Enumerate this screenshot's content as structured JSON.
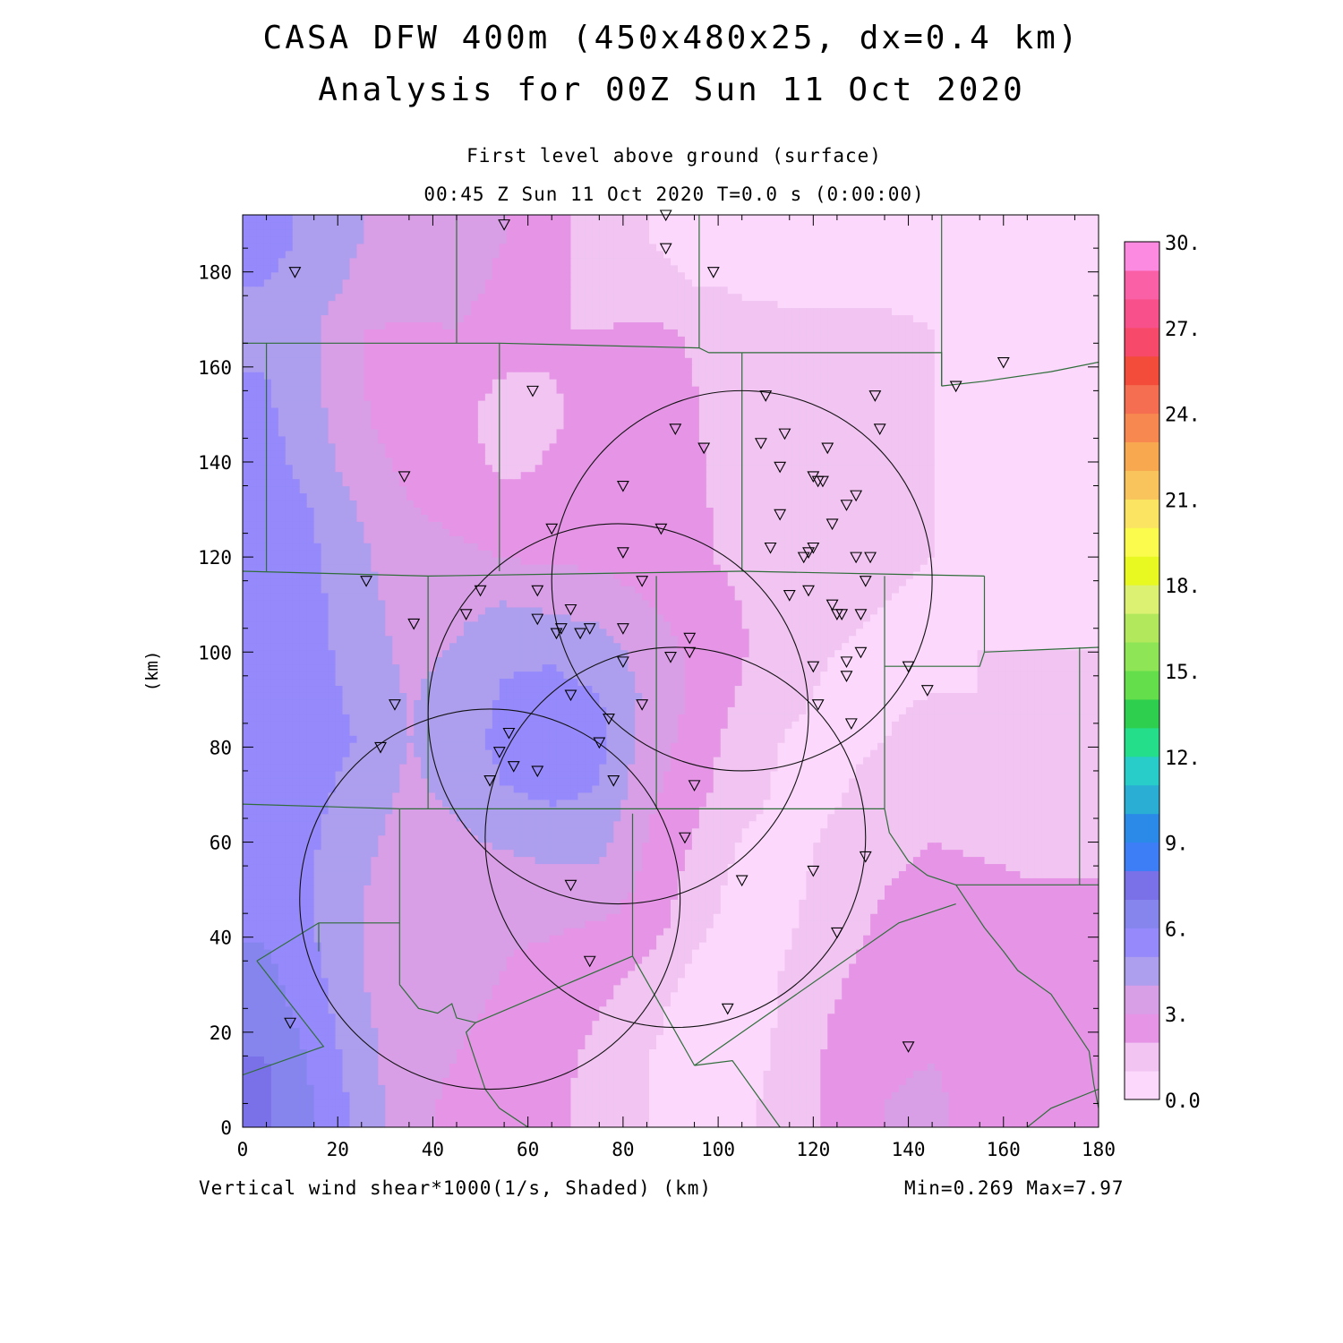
{
  "header": {
    "title_line1": "CASA DFW 400m (450x480x25, dx=0.4 km)",
    "title_line2": "Analysis for 00Z Sun 11 Oct 2020",
    "level": "First level above ground (surface)",
    "time": "00:45 Z Sun 11 Oct 2020   T=0.0 s (0:00:00)"
  },
  "footer": {
    "field": "Vertical wind shear*1000(1/s, Shaded)  (km)",
    "range": "Min=0.269 Max=7.97"
  },
  "chart_data": {
    "type": "heatmap",
    "xlabel": "",
    "ylabel": "(km)",
    "xlim": [
      0,
      180
    ],
    "ylim": [
      0,
      192
    ],
    "xticks": [
      0,
      20,
      40,
      60,
      80,
      100,
      120,
      140,
      160,
      180
    ],
    "yticks": [
      0,
      20,
      40,
      60,
      80,
      100,
      120,
      140,
      160,
      180
    ],
    "min": 0.269,
    "max": 7.97,
    "colorbar": {
      "labels": [
        "0.0",
        "3.",
        "6.",
        "9.",
        "12.",
        "15.",
        "18.",
        "21.",
        "24.",
        "27.",
        "30."
      ],
      "levels": [
        0,
        1,
        2,
        3,
        4,
        5,
        6,
        7,
        8,
        9,
        10,
        11,
        12,
        13,
        14,
        15,
        16,
        17,
        18,
        19,
        20,
        21,
        22,
        23,
        24,
        25,
        26,
        27,
        28,
        29,
        30
      ],
      "colors": [
        "#fcd9fc",
        "#f1c4f1",
        "#e695e6",
        "#d89ee6",
        "#ad9fee",
        "#9589fb",
        "#8685ee",
        "#7a70e8",
        "#3d7ef7",
        "#2b8ae8",
        "#2aaed4",
        "#28ccc8",
        "#24de8a",
        "#2ecf4e",
        "#64df4b",
        "#8ee656",
        "#b2e85c",
        "#dcf072",
        "#e7f920",
        "#fbfb4e",
        "#fbe462",
        "#f8c45b",
        "#f8a950",
        "#f68850",
        "#f56e52",
        "#f44c3a",
        "#f74a6a",
        "#f8508a",
        "#fa60a6",
        "#fc8ae0"
      ]
    },
    "shading_field": {
      "nx": 18,
      "ny": 20,
      "x_centers": [
        5,
        15,
        25,
        35,
        45,
        55,
        65,
        75,
        85,
        95,
        105,
        115,
        125,
        135,
        145,
        155,
        165,
        175
      ],
      "y_centers": [
        4.8,
        14.4,
        24,
        33.6,
        43.2,
        52.8,
        62.4,
        72,
        81.6,
        91.2,
        100.8,
        110.4,
        120,
        129.6,
        139.2,
        148.8,
        158.4,
        168,
        177.6,
        187.2
      ],
      "values": [
        [
          7.2,
          6.0,
          4.6,
          3.3,
          2.8,
          2.6,
          2.3,
          1.5,
          1.0,
          0.8,
          0.8,
          1.4,
          2.4,
          3.0,
          3.1,
          2.8,
          2.7,
          2.7
        ],
        [
          7.0,
          5.8,
          4.4,
          3.3,
          3.0,
          2.7,
          2.4,
          1.7,
          1.0,
          0.6,
          0.6,
          1.3,
          2.3,
          2.9,
          3.0,
          2.8,
          2.7,
          2.7
        ],
        [
          6.6,
          5.5,
          4.2,
          3.3,
          3.1,
          2.9,
          2.6,
          2.0,
          1.3,
          0.5,
          0.5,
          1.2,
          2.1,
          2.7,
          2.9,
          2.8,
          2.6,
          2.6
        ],
        [
          6.2,
          5.2,
          4.0,
          3.3,
          3.2,
          3.0,
          2.8,
          2.4,
          1.8,
          0.8,
          0.5,
          1.1,
          1.8,
          2.5,
          2.8,
          2.7,
          2.5,
          2.4
        ],
        [
          5.8,
          5.0,
          4.0,
          3.4,
          3.3,
          3.1,
          3.1,
          3.0,
          2.6,
          1.3,
          0.6,
          0.9,
          1.5,
          2.2,
          2.6,
          2.5,
          2.3,
          2.2
        ],
        [
          5.5,
          5.0,
          4.1,
          3.5,
          3.6,
          3.6,
          3.8,
          3.8,
          2.8,
          1.6,
          0.7,
          0.8,
          1.3,
          1.9,
          2.3,
          2.2,
          2.0,
          2.0
        ],
        [
          5.4,
          5.1,
          4.3,
          3.6,
          3.9,
          4.3,
          4.6,
          4.5,
          3.0,
          2.0,
          1.0,
          0.8,
          1.1,
          1.6,
          1.9,
          1.7,
          1.6,
          1.6
        ],
        [
          5.6,
          5.3,
          4.6,
          3.8,
          4.3,
          5.0,
          5.3,
          5.0,
          3.3,
          2.4,
          1.3,
          0.8,
          0.9,
          1.3,
          1.5,
          1.4,
          1.3,
          1.3
        ],
        [
          5.9,
          5.5,
          4.9,
          4.0,
          4.5,
          5.3,
          5.6,
          5.3,
          3.6,
          2.6,
          1.5,
          0.9,
          0.8,
          1.0,
          1.2,
          1.1,
          1.1,
          1.1
        ],
        [
          5.8,
          5.4,
          4.7,
          3.9,
          4.4,
          5.1,
          5.3,
          5.0,
          3.8,
          2.8,
          1.9,
          1.2,
          0.8,
          0.9,
          1.0,
          1.0,
          1.0,
          1.0
        ],
        [
          5.7,
          5.3,
          4.5,
          3.7,
          4.1,
          4.8,
          4.8,
          4.5,
          3.5,
          2.8,
          2.1,
          1.4,
          1.0,
          0.9,
          0.9,
          1.0,
          1.0,
          1.0
        ],
        [
          5.6,
          5.2,
          4.4,
          3.5,
          3.7,
          4.0,
          3.8,
          3.5,
          3.0,
          2.6,
          2.0,
          1.4,
          1.1,
          1.0,
          0.9,
          0.9,
          0.9,
          0.9
        ],
        [
          5.6,
          5.1,
          4.2,
          3.3,
          3.2,
          3.0,
          2.8,
          2.8,
          2.6,
          2.3,
          1.6,
          1.3,
          1.2,
          1.1,
          1.0,
          0.9,
          0.9,
          0.9
        ],
        [
          5.5,
          5.0,
          3.9,
          3.1,
          2.8,
          2.4,
          2.4,
          2.5,
          2.5,
          2.3,
          1.4,
          1.2,
          1.1,
          1.1,
          1.0,
          0.9,
          0.9,
          0.9
        ],
        [
          5.4,
          4.6,
          3.4,
          2.8,
          2.5,
          1.8,
          2.1,
          2.3,
          2.4,
          2.2,
          1.3,
          1.2,
          1.2,
          1.1,
          1.0,
          0.9,
          0.8,
          0.8
        ],
        [
          5.2,
          4.3,
          3.1,
          2.6,
          2.3,
          1.5,
          1.9,
          2.2,
          2.3,
          2.1,
          1.3,
          1.1,
          1.1,
          1.1,
          1.0,
          0.9,
          0.8,
          0.8
        ],
        [
          5.0,
          4.2,
          3.0,
          2.6,
          2.4,
          2.0,
          2.0,
          2.2,
          2.3,
          2.0,
          1.3,
          1.1,
          1.1,
          1.1,
          1.0,
          0.9,
          0.8,
          0.8
        ],
        [
          4.8,
          4.1,
          3.0,
          2.9,
          3.0,
          2.6,
          2.0,
          2.0,
          2.2,
          1.9,
          1.2,
          1.1,
          1.1,
          1.1,
          1.0,
          0.8,
          0.7,
          0.7
        ],
        [
          5.0,
          4.5,
          3.7,
          3.5,
          3.3,
          2.8,
          2.3,
          1.4,
          1.1,
          1.0,
          0.9,
          0.9,
          0.9,
          0.9,
          0.8,
          0.6,
          0.6,
          0.6
        ],
        [
          5.3,
          4.8,
          4.0,
          3.8,
          3.6,
          3.0,
          2.6,
          1.3,
          1.0,
          0.9,
          0.9,
          0.9,
          0.9,
          0.9,
          0.8,
          0.6,
          0.6,
          0.6
        ]
      ]
    },
    "radar_rings": [
      {
        "cx": 105,
        "cy": 115,
        "r": 40
      },
      {
        "cx": 79,
        "cy": 87,
        "r": 40
      },
      {
        "cx": 91,
        "cy": 61,
        "r": 40
      },
      {
        "cx": 52,
        "cy": 48,
        "r": 40
      }
    ],
    "stations": [
      [
        11,
        180
      ],
      [
        55,
        190
      ],
      [
        89,
        192
      ],
      [
        89,
        185
      ],
      [
        99,
        180
      ],
      [
        61,
        155
      ],
      [
        160,
        161
      ],
      [
        150,
        156
      ],
      [
        34,
        137
      ],
      [
        110,
        154
      ],
      [
        133,
        154
      ],
      [
        91,
        147
      ],
      [
        97,
        143
      ],
      [
        109,
        144
      ],
      [
        114,
        146
      ],
      [
        134,
        147
      ],
      [
        123,
        143
      ],
      [
        113,
        139
      ],
      [
        80,
        135
      ],
      [
        120,
        137
      ],
      [
        121,
        136
      ],
      [
        122,
        136
      ],
      [
        129,
        133
      ],
      [
        127,
        131
      ],
      [
        65,
        126
      ],
      [
        88,
        126
      ],
      [
        113,
        129
      ],
      [
        124,
        127
      ],
      [
        80,
        121
      ],
      [
        111,
        122
      ],
      [
        120,
        122
      ],
      [
        119,
        121
      ],
      [
        118,
        120
      ],
      [
        129,
        120
      ],
      [
        132,
        120
      ],
      [
        26,
        115
      ],
      [
        84,
        115
      ],
      [
        131,
        115
      ],
      [
        50,
        113
      ],
      [
        62,
        113
      ],
      [
        69,
        109
      ],
      [
        115,
        112
      ],
      [
        119,
        113
      ],
      [
        124,
        110
      ],
      [
        125,
        108
      ],
      [
        126,
        108
      ],
      [
        47,
        108
      ],
      [
        130,
        108
      ],
      [
        36,
        106
      ],
      [
        62,
        107
      ],
      [
        67,
        105
      ],
      [
        66,
        104
      ],
      [
        71,
        104
      ],
      [
        73,
        105
      ],
      [
        80,
        105
      ],
      [
        94,
        103
      ],
      [
        94,
        100
      ],
      [
        90,
        99
      ],
      [
        130,
        100
      ],
      [
        127,
        98
      ],
      [
        80,
        98
      ],
      [
        120,
        97
      ],
      [
        140,
        97
      ],
      [
        127,
        95
      ],
      [
        69,
        91
      ],
      [
        144,
        92
      ],
      [
        32,
        89
      ],
      [
        84,
        89
      ],
      [
        121,
        89
      ],
      [
        77,
        86
      ],
      [
        128,
        85
      ],
      [
        29,
        80
      ],
      [
        56,
        83
      ],
      [
        54,
        79
      ],
      [
        75,
        81
      ],
      [
        57,
        76
      ],
      [
        62,
        75
      ],
      [
        52,
        73
      ],
      [
        78,
        73
      ],
      [
        95,
        72
      ],
      [
        93,
        61
      ],
      [
        131,
        57
      ],
      [
        120,
        54
      ],
      [
        105,
        52
      ],
      [
        69,
        51
      ],
      [
        125,
        41
      ],
      [
        73,
        35
      ],
      [
        102,
        25
      ],
      [
        10,
        22
      ],
      [
        140,
        17
      ]
    ],
    "boundaries": [
      [
        [
          45,
          192
        ],
        [
          45,
          165
        ]
      ],
      [
        [
          0,
          165
        ],
        [
          54,
          165
        ]
      ],
      [
        [
          54,
          165
        ],
        [
          54,
          117
        ]
      ],
      [
        [
          54,
          165
        ],
        [
          96,
          164
        ],
        [
          98,
          163
        ]
      ],
      [
        [
          96,
          192
        ],
        [
          96,
          164
        ]
      ],
      [
        [
          105,
          163
        ],
        [
          105,
          117
        ]
      ],
      [
        [
          98,
          163
        ],
        [
          105,
          163
        ]
      ],
      [
        [
          105,
          163
        ],
        [
          147,
          163
        ],
        [
          147,
          156
        ]
      ],
      [
        [
          147,
          192
        ],
        [
          147,
          156
        ]
      ],
      [
        [
          147,
          156
        ],
        [
          156,
          157
        ],
        [
          170,
          159
        ],
        [
          180,
          161
        ]
      ],
      [
        [
          5,
          165
        ],
        [
          5,
          117
        ]
      ],
      [
        [
          0,
          117
        ],
        [
          39,
          116
        ]
      ],
      [
        [
          39,
          116
        ],
        [
          39,
          67
        ]
      ],
      [
        [
          39,
          116
        ],
        [
          105,
          117
        ]
      ],
      [
        [
          105,
          117
        ],
        [
          156,
          116
        ]
      ],
      [
        [
          156,
          116
        ],
        [
          156,
          100
        ]
      ],
      [
        [
          156,
          100
        ],
        [
          180,
          101
        ]
      ],
      [
        [
          156,
          100
        ],
        [
          155,
          97
        ],
        [
          135,
          97
        ]
      ],
      [
        [
          87,
          116
        ],
        [
          87,
          67
        ]
      ],
      [
        [
          135,
          116
        ],
        [
          135,
          67
        ]
      ],
      [
        [
          0,
          68
        ],
        [
          33,
          67
        ]
      ],
      [
        [
          33,
          67
        ],
        [
          135,
          67
        ]
      ],
      [
        [
          33,
          67
        ],
        [
          33,
          30
        ]
      ],
      [
        [
          33,
          43
        ],
        [
          16,
          43
        ],
        [
          3,
          35
        ]
      ],
      [
        [
          3,
          35
        ],
        [
          17,
          17
        ],
        [
          0,
          11
        ]
      ],
      [
        [
          16,
          43
        ],
        [
          16,
          37
        ]
      ],
      [
        [
          33,
          30
        ],
        [
          37,
          25
        ],
        [
          41,
          24
        ],
        [
          44,
          26
        ],
        [
          45,
          23
        ],
        [
          49,
          22
        ]
      ],
      [
        [
          49,
          22
        ],
        [
          82,
          36
        ]
      ],
      [
        [
          82,
          66
        ],
        [
          82,
          36
        ]
      ],
      [
        [
          82,
          36
        ],
        [
          95,
          13
        ]
      ],
      [
        [
          95,
          13
        ],
        [
          103,
          14
        ],
        [
          113,
          0
        ]
      ],
      [
        [
          95,
          13
        ],
        [
          138,
          43
        ],
        [
          150,
          47
        ]
      ],
      [
        [
          135,
          67
        ],
        [
          136,
          62
        ],
        [
          140,
          56
        ],
        [
          144,
          53
        ],
        [
          150,
          51
        ]
      ],
      [
        [
          150,
          51
        ],
        [
          180,
          51
        ]
      ],
      [
        [
          150,
          51
        ],
        [
          156,
          42
        ],
        [
          160,
          37
        ],
        [
          163,
          33
        ],
        [
          170,
          28
        ],
        [
          174,
          22
        ],
        [
          178,
          16
        ],
        [
          179,
          9
        ],
        [
          180,
          4
        ]
      ],
      [
        [
          176,
          101
        ],
        [
          176,
          51
        ]
      ],
      [
        [
          49,
          22
        ],
        [
          47,
          20
        ],
        [
          49,
          14
        ],
        [
          51,
          8
        ],
        [
          54,
          4
        ],
        [
          60,
          0
        ]
      ],
      [
        [
          180,
          8
        ],
        [
          170,
          4
        ],
        [
          165,
          0
        ]
      ]
    ]
  }
}
